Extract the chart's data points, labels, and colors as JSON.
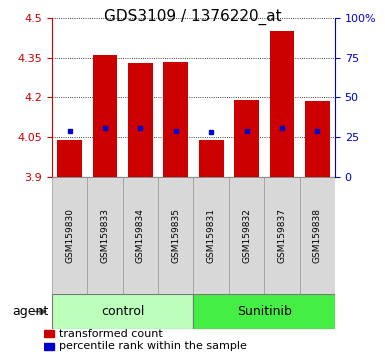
{
  "title": "GDS3109 / 1376220_at",
  "samples": [
    "GSM159830",
    "GSM159833",
    "GSM159834",
    "GSM159835",
    "GSM159831",
    "GSM159832",
    "GSM159837",
    "GSM159838"
  ],
  "bar_tops": [
    4.04,
    4.36,
    4.33,
    4.335,
    4.04,
    4.19,
    4.45,
    4.185
  ],
  "bar_bottom": 3.9,
  "percentile_values": [
    4.075,
    4.083,
    4.083,
    4.075,
    4.07,
    4.075,
    4.083,
    4.075
  ],
  "bar_color": "#cc0000",
  "percentile_color": "#0000cc",
  "ylim_left": [
    3.9,
    4.5
  ],
  "ylim_right": [
    0,
    100
  ],
  "yticks_left": [
    3.9,
    4.05,
    4.2,
    4.35,
    4.5
  ],
  "yticks_right": [
    0,
    25,
    50,
    75,
    100
  ],
  "ytick_labels_left": [
    "3.9",
    "4.05",
    "4.2",
    "4.35",
    "4.5"
  ],
  "ytick_labels_right": [
    "0",
    "25",
    "50",
    "75",
    "100%"
  ],
  "groups": [
    {
      "label": "control",
      "indices": [
        0,
        1,
        2,
        3
      ],
      "color": "#bbffbb"
    },
    {
      "label": "Sunitinib",
      "indices": [
        4,
        5,
        6,
        7
      ],
      "color": "#44ee44"
    }
  ],
  "group_row_label": "agent",
  "legend_items": [
    {
      "color": "#cc0000",
      "label": "transformed count"
    },
    {
      "color": "#0000cc",
      "label": "percentile rank within the sample"
    }
  ],
  "bar_width": 0.7,
  "grid_color": "#000000",
  "title_fontsize": 11,
  "tick_fontsize": 8,
  "sample_fontsize": 6.5,
  "group_fontsize": 9,
  "legend_fontsize": 8
}
